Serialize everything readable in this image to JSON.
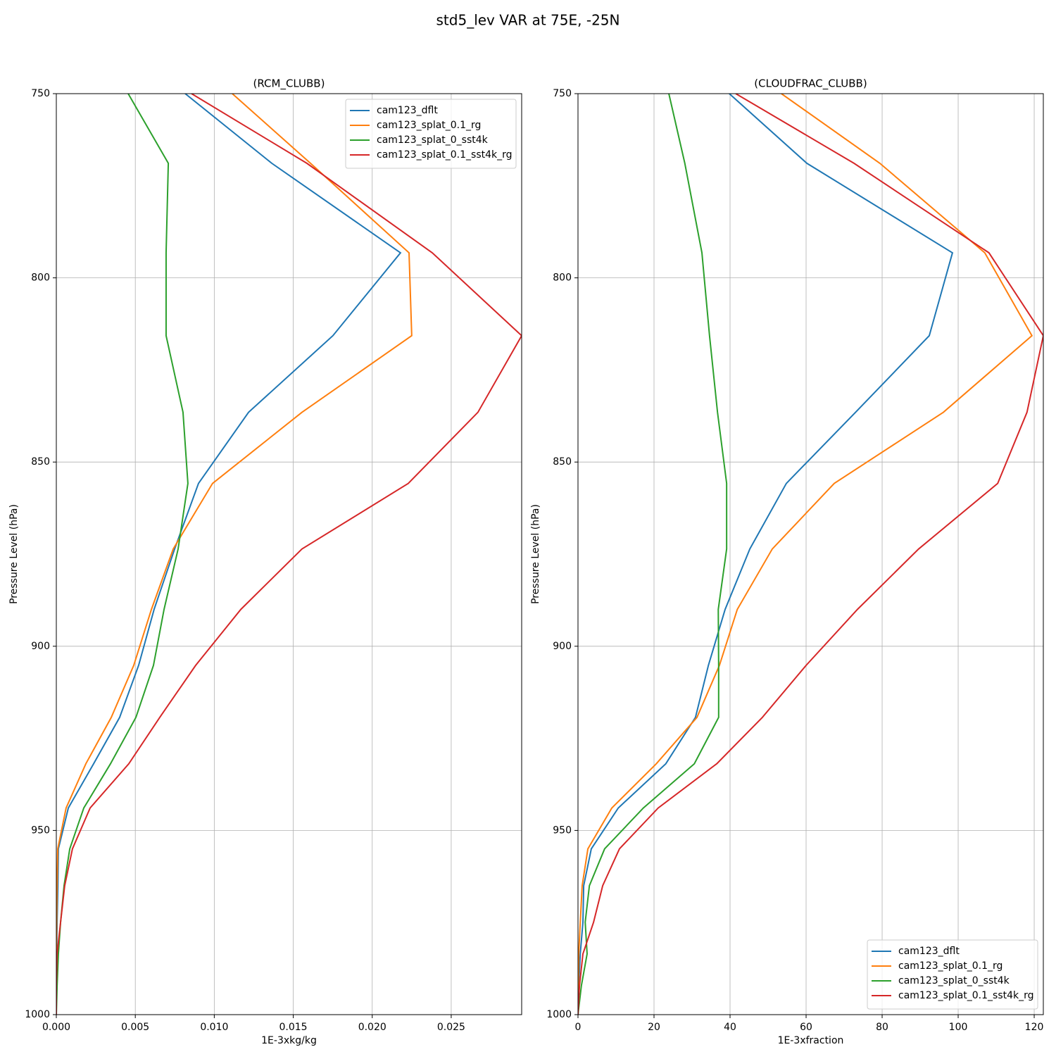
{
  "title": "std5_lev VAR at 75E, -25N",
  "chart_data": [
    {
      "type": "line",
      "orientation": "profile",
      "title": "(RCM_CLUBB)",
      "x_label": "1E-3xkg/kg",
      "y_label": "Pressure Level (hPa)",
      "y": [
        750,
        768.9,
        793.2,
        815.7,
        836.5,
        855.8,
        873.6,
        890.0,
        905.2,
        919.3,
        931.9,
        943.9,
        955.0,
        965.0,
        974.9,
        983.5,
        992.1,
        1000
      ],
      "series": [
        {
          "name": "cam123_dflt",
          "color": "#1f77b4",
          "values": [
            0.00816,
            0.01364,
            0.02179,
            0.01751,
            0.01217,
            0.009,
            0.00749,
            0.00619,
            0.00521,
            0.00401,
            0.00236,
            0.00076,
            0.00013,
            0.0001,
            5e-05,
            2e-05,
            0,
            0
          ]
        },
        {
          "name": "cam123_splat_0.1_rg",
          "color": "#ff7f0e",
          "values": [
            0.01114,
            0.01609,
            0.02233,
            0.0225,
            0.01555,
            0.00989,
            0.0074,
            0.00602,
            0.0049,
            0.00348,
            0.00187,
            0.00062,
            9e-05,
            5e-05,
            2e-05,
            0,
            0,
            0
          ]
        },
        {
          "name": "cam123_splat_0_sst4k",
          "color": "#2ca02c",
          "values": [
            0.00455,
            0.00709,
            0.00695,
            0.00695,
            0.00802,
            0.00833,
            0.00771,
            0.00682,
            0.00615,
            0.00504,
            0.00343,
            0.00174,
            0.00085,
            0.00049,
            0.00027,
            0.00013,
            5e-05,
            0
          ]
        },
        {
          "name": "cam123_splat_0.1_sst4k_rg",
          "color": "#d62728",
          "values": [
            0.00856,
            0.01586,
            0.0238,
            0.02946,
            0.02669,
            0.02228,
            0.01555,
            0.01168,
            0.00882,
            0.00655,
            0.00459,
            0.00214,
            0.00102,
            0.00053,
            0.00027,
            5e-05,
            0,
            0
          ]
        }
      ],
      "xlim": [
        0,
        0.02946
      ],
      "ylim": [
        1000,
        750
      ],
      "xticks": [
        {
          "value": 0,
          "label": "0.000"
        },
        {
          "value": 0.005,
          "label": "0.005"
        },
        {
          "value": 0.01,
          "label": "0.010"
        },
        {
          "value": 0.015,
          "label": "0.015"
        },
        {
          "value": 0.02,
          "label": "0.020"
        },
        {
          "value": 0.025,
          "label": "0.025"
        }
      ],
      "yticks": [
        750,
        800,
        850,
        900,
        950,
        1000
      ],
      "y_inverted": true,
      "grid": true,
      "legend": "upper right"
    },
    {
      "type": "line",
      "orientation": "profile",
      "title": "(CLOUDFRAC_CLUBB)",
      "x_label": "1E-3xfraction",
      "y_label": "Pressure Level (hPa)",
      "y": [
        750,
        768.9,
        793.2,
        815.7,
        836.5,
        855.8,
        873.6,
        890.0,
        905.2,
        919.3,
        931.9,
        943.9,
        955.0,
        965.0,
        974.9,
        983.5,
        992.1,
        1000
      ],
      "series": [
        {
          "name": "cam123_dflt",
          "color": "#1f77b4",
          "values": [
            39.8,
            60.2,
            98.5,
            92.4,
            73,
            54.8,
            45.2,
            38.7,
            34.3,
            30.9,
            23.1,
            10.6,
            3.5,
            1.5,
            1.3,
            0.6,
            0.2,
            0
          ]
        },
        {
          "name": "cam123_splat_0.1_rg",
          "color": "#ff7f0e",
          "values": [
            53.5,
            79.4,
            107,
            119.4,
            96.1,
            67.4,
            51.1,
            41.9,
            37.2,
            31.3,
            20.6,
            8.9,
            2.6,
            1.1,
            0.6,
            0.2,
            0.1,
            0
          ]
        },
        {
          "name": "cam123_splat_0_sst4k",
          "color": "#2ca02c",
          "values": [
            23.9,
            28.1,
            32.6,
            34.6,
            36.7,
            39.1,
            39.1,
            36.9,
            37.0,
            37.0,
            30.6,
            17.2,
            7,
            3,
            1.9,
            2.4,
            0.9,
            0
          ]
        },
        {
          "name": "cam123_splat_0.1_sst4k_rg",
          "color": "#d62728",
          "values": [
            41.5,
            72.6,
            108.1,
            122.4,
            118.1,
            110.4,
            89.6,
            73.5,
            60,
            48.5,
            36.5,
            21.1,
            10.9,
            6.5,
            4.1,
            1.3,
            0.4,
            0
          ]
        }
      ],
      "xlim": [
        0,
        122.4
      ],
      "ylim": [
        1000,
        750
      ],
      "xticks": [
        0,
        20,
        40,
        60,
        80,
        100,
        120
      ],
      "yticks": [
        750,
        800,
        850,
        900,
        950,
        1000
      ],
      "y_inverted": true,
      "grid": true,
      "legend": "lower right"
    }
  ]
}
